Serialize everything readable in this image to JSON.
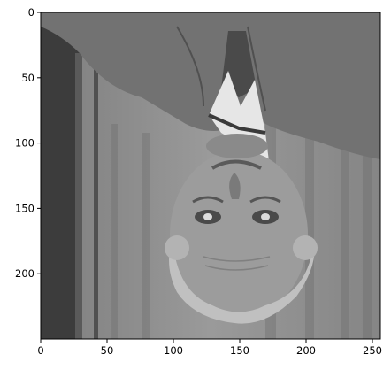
{
  "figure": {
    "description_image": "upside-down grayscale photo",
    "x_ticks": [
      0,
      50,
      100,
      150,
      200,
      250
    ],
    "y_ticks": [
      0,
      50,
      100,
      150,
      200
    ],
    "x_range": [
      0,
      256
    ],
    "y_range": [
      0,
      250
    ],
    "colors": {
      "axes": "#000000",
      "photo_bg": "#8a8a8a",
      "jacket": "#6f6f6f",
      "curtain_dark": "#3a3a3a",
      "skin": "#9a9a9a",
      "hair": "#b8b8b8",
      "collar": "#e6e6e6"
    }
  }
}
